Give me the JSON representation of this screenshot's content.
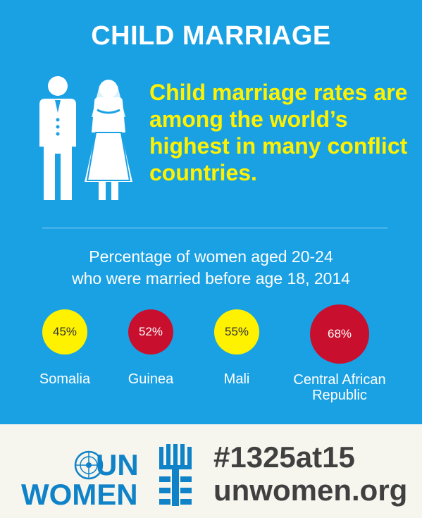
{
  "header": {
    "title": "CHILD MARRIAGE"
  },
  "headline": "Child marriage rates are among the world’s highest in many conflict countries.",
  "subtitle": {
    "line1": "Percentage of women aged 20-24",
    "line2": "who were married before age 18, 2014"
  },
  "stats": [
    {
      "value": "45%",
      "country": "Somalia",
      "color": "#fff200"
    },
    {
      "value": "52%",
      "country": "Guinea",
      "color": "#c8102e"
    },
    {
      "value": "55%",
      "country": "Mali",
      "color": "#fff200"
    },
    {
      "value": "68%",
      "country_line1": "Central African",
      "country_line2": "Republic",
      "color": "#c8102e"
    }
  ],
  "footer": {
    "logo_un": "UN",
    "logo_women": "WOMEN",
    "hashtag": "#1325at15",
    "website": "unwomen.org"
  },
  "icons": [
    "bride-groom-icon",
    "un-globe-icon",
    "un-women-emblem-icon"
  ],
  "colors": {
    "background": "#1aa1e4",
    "accent_yellow": "#fff200",
    "accent_red": "#c8102e",
    "logo_blue": "#0f82c8"
  }
}
